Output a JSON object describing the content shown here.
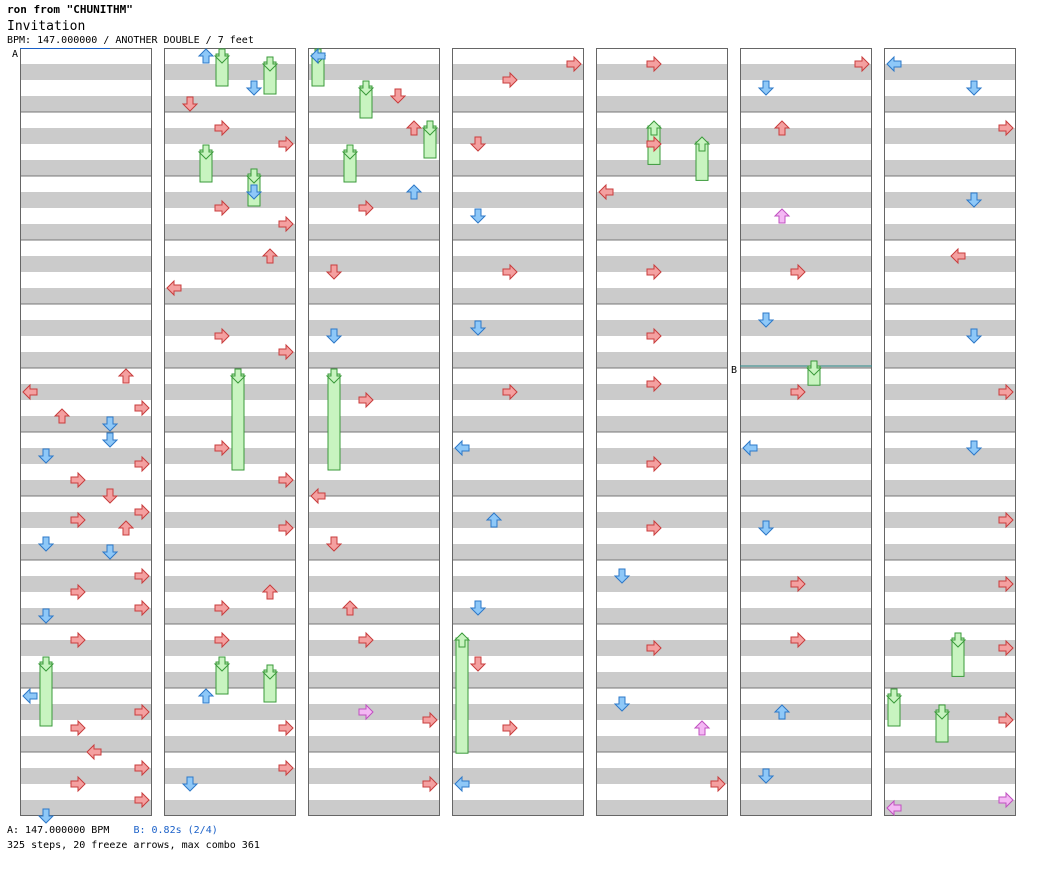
{
  "header": {
    "song_line": "ron from \"CHUNITHM\"",
    "title": "Invitation",
    "info": "BPM: 147.000000 / ANOTHER DOUBLE / 7 feet"
  },
  "footer": {
    "bpm_label": "A: 147.000000 BPM",
    "stop_label": "B: 0.82s (2/4)",
    "stats": "325 steps, 20 freeze arrows, max combo 361"
  },
  "markers": {
    "a": "A",
    "b": "B"
  },
  "colors": {
    "red": "#f4a0a0",
    "blue": "#8ec8f8",
    "pink": "#f4b8f4",
    "freeze": "#c8f4c0",
    "band": "#cbcbcb"
  },
  "chart_data": {
    "type": "step-chart",
    "columns": 7,
    "measures_per_column": 12,
    "lanes": [
      "1L",
      "1D",
      "1U",
      "1R",
      "2L",
      "2D",
      "2U",
      "2R"
    ],
    "notes": [
      [
        0,
        5,
        0,
        "U",
        "red"
      ],
      [
        0,
        5,
        1,
        "L",
        "red"
      ],
      [
        0,
        5,
        2,
        "R",
        "red"
      ],
      [
        0,
        5,
        2.5,
        "U",
        "red"
      ],
      [
        0,
        5,
        3,
        "D",
        "blue"
      ],
      [
        0,
        6,
        0,
        "D",
        "blue"
      ],
      [
        0,
        6,
        1,
        "D",
        "blue"
      ],
      [
        0,
        6,
        1.5,
        "R",
        "red"
      ],
      [
        0,
        6,
        2.5,
        "R",
        "red"
      ],
      [
        0,
        6,
        3.5,
        "D",
        "red"
      ],
      [
        0,
        7,
        0.5,
        "R",
        "red"
      ],
      [
        0,
        7,
        1,
        "R",
        "red"
      ],
      [
        0,
        7,
        1.5,
        "U",
        "red"
      ],
      [
        0,
        7,
        2.5,
        "D",
        "blue"
      ],
      [
        0,
        7,
        3,
        "D",
        "blue"
      ],
      [
        0,
        8,
        0.5,
        "R",
        "red"
      ],
      [
        0,
        8,
        1.5,
        "R",
        "red"
      ],
      [
        0,
        8,
        2.5,
        "R",
        "red"
      ],
      [
        0,
        8,
        3,
        "D",
        "blue"
      ],
      [
        0,
        9,
        0.5,
        "R",
        "red"
      ],
      [
        0,
        10,
        0,
        "L",
        "blue"
      ],
      [
        0,
        10,
        1,
        "R",
        "red"
      ],
      [
        0,
        10,
        2,
        "R",
        "red"
      ],
      [
        0,
        10,
        3.5,
        "L",
        "red"
      ],
      [
        0,
        11,
        0.5,
        "R",
        "red"
      ],
      [
        0,
        11,
        1.5,
        "R",
        "red"
      ],
      [
        0,
        11,
        2.5,
        "R",
        "red"
      ],
      [
        0,
        11,
        3.5,
        "D",
        "blue"
      ],
      [
        1,
        0,
        0,
        "U",
        "blue"
      ],
      [
        1,
        0,
        2,
        "D",
        "blue"
      ],
      [
        1,
        0,
        3,
        "D",
        "red"
      ],
      [
        1,
        1,
        0.5,
        "R",
        "red"
      ],
      [
        1,
        1,
        1.5,
        "R",
        "red"
      ],
      [
        1,
        2,
        0.5,
        "D",
        "blue"
      ],
      [
        1,
        2,
        1.5,
        "R",
        "red"
      ],
      [
        1,
        2,
        2.5,
        "R",
        "red"
      ],
      [
        1,
        3,
        0.5,
        "U",
        "red"
      ],
      [
        1,
        3,
        2.5,
        "L",
        "red"
      ],
      [
        1,
        4,
        1.5,
        "R",
        "red"
      ],
      [
        1,
        4,
        2.5,
        "R",
        "red"
      ],
      [
        1,
        6,
        0.5,
        "R",
        "red"
      ],
      [
        1,
        6,
        2.5,
        "R",
        "red"
      ],
      [
        1,
        7,
        1.5,
        "R",
        "red"
      ],
      [
        1,
        8,
        1.5,
        "U",
        "red"
      ],
      [
        1,
        8,
        2.5,
        "R",
        "red"
      ],
      [
        1,
        9,
        0.5,
        "R",
        "red"
      ],
      [
        1,
        10,
        0,
        "U",
        "blue"
      ],
      [
        1,
        10,
        2,
        "R",
        "red"
      ],
      [
        1,
        11,
        0.5,
        "R",
        "red"
      ],
      [
        1,
        11,
        1.5,
        "D",
        "blue"
      ],
      [
        2,
        0,
        0,
        "L",
        "blue"
      ],
      [
        2,
        0,
        2.5,
        "D",
        "red"
      ],
      [
        2,
        1,
        0.5,
        "U",
        "red"
      ],
      [
        2,
        2,
        0.5,
        "U",
        "blue"
      ],
      [
        2,
        2,
        1.5,
        "R",
        "red"
      ],
      [
        2,
        3,
        1.5,
        "D",
        "red"
      ],
      [
        2,
        4,
        1.5,
        "D",
        "blue"
      ],
      [
        2,
        5,
        1.5,
        "R",
        "red"
      ],
      [
        2,
        6,
        3.5,
        "L",
        "red"
      ],
      [
        2,
        7,
        2.5,
        "D",
        "red"
      ],
      [
        2,
        8,
        2.5,
        "U",
        "red"
      ],
      [
        2,
        9,
        0.5,
        "R",
        "red"
      ],
      [
        2,
        10,
        1,
        "R",
        "pink"
      ],
      [
        2,
        10,
        1.5,
        "R",
        "red"
      ],
      [
        2,
        11,
        1.5,
        "R",
        "red"
      ],
      [
        3,
        0,
        0.5,
        "R",
        "red"
      ],
      [
        3,
        0,
        1.5,
        "R",
        "red"
      ],
      [
        3,
        1,
        1.5,
        "D",
        "red"
      ],
      [
        3,
        2,
        2,
        "D",
        "blue"
      ],
      [
        3,
        3,
        1.5,
        "R",
        "red"
      ],
      [
        3,
        4,
        1,
        "D",
        "blue"
      ],
      [
        3,
        5,
        1,
        "R",
        "red"
      ],
      [
        3,
        6,
        0.5,
        "L",
        "blue"
      ],
      [
        3,
        7,
        1,
        "U",
        "blue"
      ],
      [
        3,
        8,
        2.5,
        "D",
        "blue"
      ],
      [
        3,
        9,
        2,
        "D",
        "red"
      ],
      [
        3,
        10,
        2,
        "R",
        "red"
      ],
      [
        3,
        11,
        1.5,
        "L",
        "blue"
      ],
      [
        4,
        0,
        0.5,
        "R",
        "red"
      ],
      [
        4,
        1,
        1.5,
        "R",
        "red"
      ],
      [
        4,
        2,
        0.5,
        "L",
        "red"
      ],
      [
        4,
        3,
        1.5,
        "R",
        "red"
      ],
      [
        4,
        4,
        1.5,
        "R",
        "red"
      ],
      [
        4,
        5,
        0.5,
        "R",
        "red"
      ],
      [
        4,
        6,
        1.5,
        "R",
        "red"
      ],
      [
        4,
        7,
        1.5,
        "R",
        "red"
      ],
      [
        4,
        8,
        0.5,
        "D",
        "blue"
      ],
      [
        4,
        9,
        1,
        "R",
        "red"
      ],
      [
        4,
        10,
        0.5,
        "D",
        "blue"
      ],
      [
        4,
        10,
        2,
        "U",
        "pink"
      ],
      [
        4,
        11,
        1.5,
        "R",
        "red"
      ],
      [
        5,
        0,
        0.5,
        "R",
        "red"
      ],
      [
        5,
        0,
        2,
        "D",
        "blue"
      ],
      [
        5,
        1,
        0.5,
        "U",
        "red"
      ],
      [
        5,
        2,
        2,
        "U",
        "pink"
      ],
      [
        5,
        3,
        1.5,
        "R",
        "red"
      ],
      [
        5,
        4,
        0.5,
        "D",
        "blue"
      ],
      [
        5,
        5,
        1,
        "R",
        "red"
      ],
      [
        5,
        6,
        0.5,
        "L",
        "blue"
      ],
      [
        5,
        7,
        1.5,
        "D",
        "blue"
      ],
      [
        5,
        8,
        1,
        "R",
        "red"
      ],
      [
        5,
        9,
        0.5,
        "R",
        "red"
      ],
      [
        5,
        10,
        1,
        "U",
        "blue"
      ],
      [
        5,
        11,
        1,
        "D",
        "blue"
      ],
      [
        6,
        0,
        0.5,
        "L",
        "blue"
      ],
      [
        6,
        0,
        2,
        "D",
        "blue"
      ],
      [
        6,
        1,
        0.5,
        "R",
        "red"
      ],
      [
        6,
        2,
        1,
        "D",
        "blue"
      ],
      [
        6,
        3,
        0.5,
        "L",
        "red"
      ],
      [
        6,
        4,
        1.5,
        "D",
        "blue"
      ],
      [
        6,
        5,
        1,
        "R",
        "red"
      ],
      [
        6,
        6,
        0.5,
        "D",
        "blue"
      ],
      [
        6,
        7,
        1,
        "R",
        "red"
      ],
      [
        6,
        8,
        1,
        "R",
        "red"
      ],
      [
        6,
        9,
        1,
        "R",
        "red"
      ],
      [
        6,
        10,
        1.5,
        "R",
        "red"
      ],
      [
        6,
        11,
        2.5,
        "R",
        "pink"
      ],
      [
        6,
        11,
        3,
        "L",
        "pink"
      ]
    ],
    "freezes": [
      [
        0,
        9,
        2,
        1,
        "D"
      ],
      [
        1,
        0,
        0,
        0.5,
        "D"
      ],
      [
        1,
        0,
        0.5,
        0.5,
        "D"
      ],
      [
        1,
        1,
        2,
        0.5,
        "D"
      ],
      [
        1,
        1,
        3.5,
        0.5,
        "D"
      ],
      [
        1,
        5,
        0,
        1.5,
        "D"
      ],
      [
        1,
        9,
        2,
        0.5,
        "D"
      ],
      [
        1,
        9,
        2.5,
        0.5,
        "D"
      ],
      [
        2,
        0,
        0,
        0.5,
        "D"
      ],
      [
        2,
        0,
        2,
        0.5,
        "D"
      ],
      [
        2,
        1,
        0.5,
        0.5,
        "D"
      ],
      [
        2,
        1,
        2,
        0.5,
        "D"
      ],
      [
        2,
        5,
        0,
        1.5,
        "D"
      ],
      [
        3,
        9,
        0.5,
        1.8,
        "U"
      ],
      [
        4,
        1,
        0.5,
        0.6,
        "U"
      ],
      [
        4,
        1,
        1.5,
        0.6,
        "U"
      ],
      [
        5,
        4,
        3.5,
        0.3,
        "D"
      ],
      [
        6,
        9,
        0.5,
        0.6,
        "D"
      ],
      [
        6,
        10,
        0,
        0.5,
        "D"
      ],
      [
        6,
        10,
        1,
        0.5,
        "D"
      ]
    ]
  }
}
